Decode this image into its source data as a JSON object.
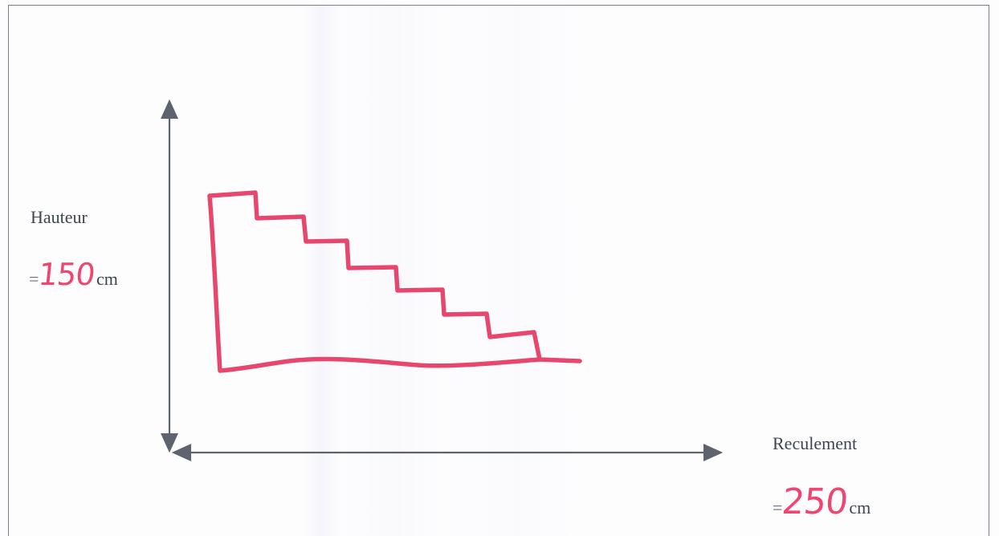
{
  "height_label": {
    "title": "Hauteur",
    "equals": "=",
    "value": "150",
    "unit": "cm"
  },
  "depth_label": {
    "title": "Reculement",
    "equals": "=",
    "value": "250",
    "unit": "cm"
  },
  "colors": {
    "axis": "#5d6470",
    "staircase": "#e8476d",
    "handwriting": "#ee4670",
    "text": "#3e4552"
  },
  "staircase": {
    "steps": 7
  }
}
